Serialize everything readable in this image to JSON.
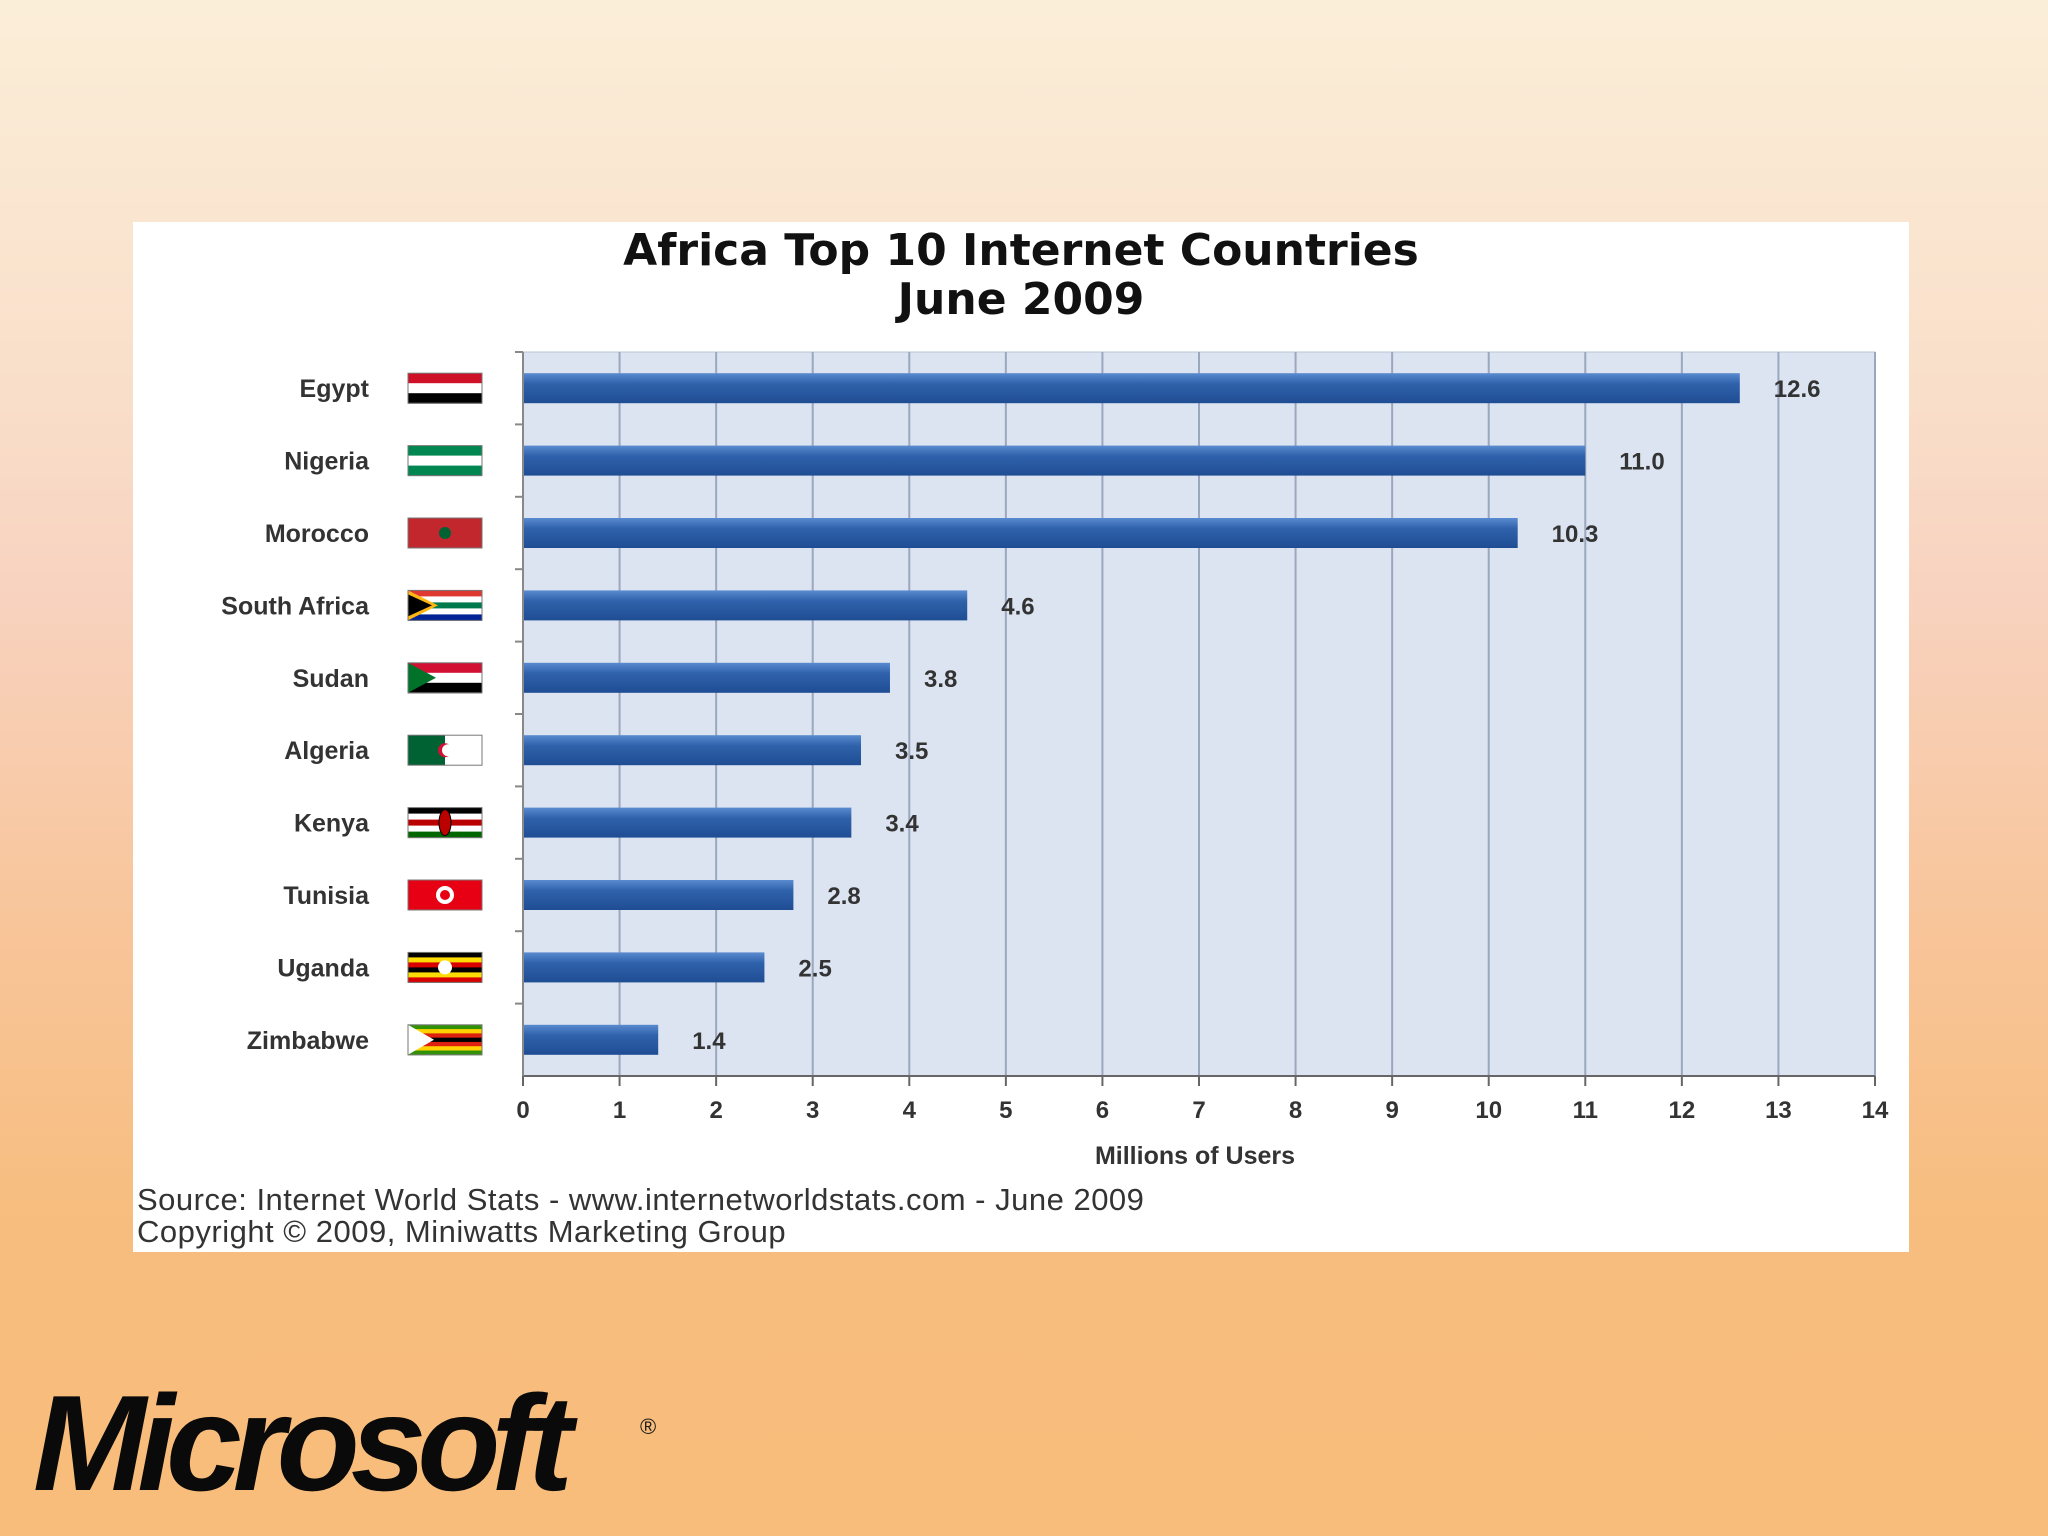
{
  "chart_data": {
    "type": "bar",
    "orientation": "horizontal",
    "title": "Africa Top 10 Internet Countries",
    "subtitle": "June 2009",
    "categories": [
      "Egypt",
      "Nigeria",
      "Morocco",
      "South Africa",
      "Sudan",
      "Algeria",
      "Kenya",
      "Tunisia",
      "Uganda",
      "Zimbabwe"
    ],
    "values": [
      12.6,
      11.0,
      10.3,
      4.6,
      3.8,
      3.5,
      3.4,
      2.8,
      2.5,
      1.4
    ],
    "value_labels": [
      "12.6",
      "11.0",
      "10.3",
      "4.6",
      "3.8",
      "3.5",
      "3.4",
      "2.8",
      "2.5",
      "1.4"
    ],
    "xlabel": "Millions of Users",
    "ylabel": "",
    "xlim": [
      0,
      14
    ],
    "xticks": [
      "0",
      "1",
      "2",
      "3",
      "4",
      "5",
      "6",
      "7",
      "8",
      "9",
      "10",
      "11",
      "12",
      "13",
      "14"
    ],
    "grid": true,
    "bar_color": "#2f62ab",
    "plot_bg": "#dce4f2"
  },
  "flags": [
    {
      "country": "Egypt",
      "icon": "egypt-flag-icon",
      "stripes": [
        "#ce1126",
        "#ffffff",
        "#000000"
      ]
    },
    {
      "country": "Nigeria",
      "icon": "nigeria-flag-icon",
      "stripes": [
        "#008751",
        "#ffffff",
        "#008751"
      ]
    },
    {
      "country": "Morocco",
      "icon": "morocco-flag-icon",
      "stripes": [
        "#c1272d"
      ]
    },
    {
      "country": "South Africa",
      "icon": "south-africa-flag-icon",
      "stripes": [
        "#de3831",
        "#ffffff",
        "#007a4d",
        "#ffffff",
        "#002395"
      ]
    },
    {
      "country": "Sudan",
      "icon": "sudan-flag-icon",
      "stripes": [
        "#d21034",
        "#ffffff",
        "#000000"
      ]
    },
    {
      "country": "Algeria",
      "icon": "algeria-flag-icon",
      "stripes": [
        "#006233",
        "#ffffff"
      ]
    },
    {
      "country": "Kenya",
      "icon": "kenya-flag-icon",
      "stripes": [
        "#000000",
        "#ffffff",
        "#bb0000",
        "#ffffff",
        "#006600"
      ]
    },
    {
      "country": "Tunisia",
      "icon": "tunisia-flag-icon",
      "stripes": [
        "#e70013"
      ]
    },
    {
      "country": "Uganda",
      "icon": "uganda-flag-icon",
      "stripes": [
        "#000000",
        "#fcdc04",
        "#d90000",
        "#000000",
        "#fcdc04",
        "#d90000"
      ]
    },
    {
      "country": "Zimbabwe",
      "icon": "zimbabwe-flag-icon",
      "stripes": [
        "#319208",
        "#ffd200",
        "#de2010",
        "#000000",
        "#de2010",
        "#ffd200",
        "#319208"
      ]
    }
  ],
  "footer": {
    "source": "Source: Internet World Stats  -  www.internetworldstats.com - June 2009",
    "copyright": "Copyright © 2009, Miniwatts Marketing Group"
  },
  "logo": {
    "text": "Microsoft",
    "registered": "®"
  }
}
